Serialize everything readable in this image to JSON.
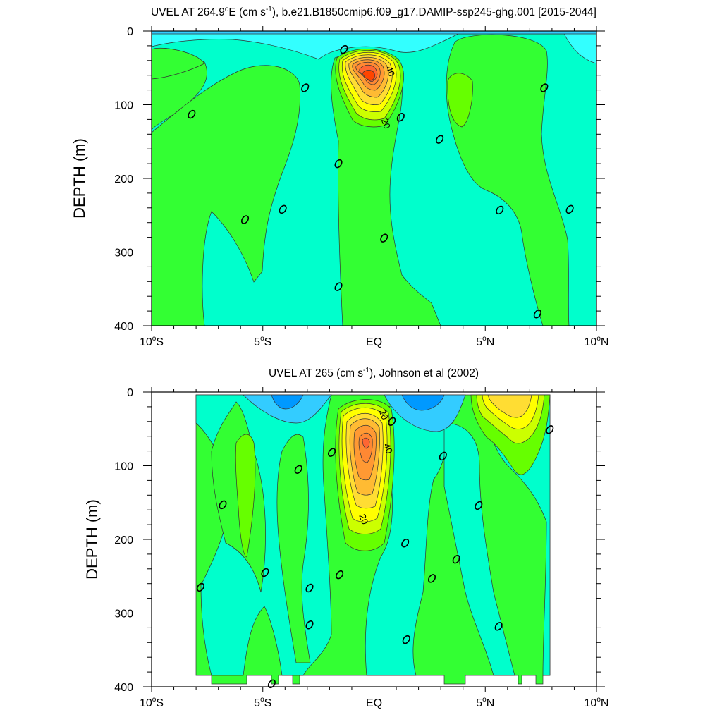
{
  "chart_data": [
    {
      "type": "heatmap",
      "title_parts": [
        "UVEL AT 264.9",
        "o",
        "E (cm s",
        "-1",
        "), b.e21.B1850cmip6.f09_g17.DAMIP-ssp245-ghg.001 [2015-2044]"
      ],
      "ylabel": "DEPTH (m)",
      "xlim": [
        -10,
        10
      ],
      "ylim": [
        0,
        400
      ],
      "x_ticks": [
        {
          "value": -10,
          "num": "10",
          "deg": "o",
          "hemi": "S"
        },
        {
          "value": -5,
          "num": "5",
          "deg": "o",
          "hemi": "S"
        },
        {
          "value": 0,
          "num": "EQ",
          "deg": "",
          "hemi": ""
        },
        {
          "value": 5,
          "num": "5",
          "deg": "o",
          "hemi": "N"
        },
        {
          "value": 10,
          "num": "10",
          "deg": "o",
          "hemi": "N"
        }
      ],
      "y_ticks": [
        {
          "value": 0,
          "label": "0"
        },
        {
          "value": 100,
          "label": "100"
        },
        {
          "value": 200,
          "label": "200"
        },
        {
          "value": 300,
          "label": "300"
        },
        {
          "value": 400,
          "label": "400"
        }
      ],
      "contour_labels": [
        {
          "text": "40",
          "x": 0.6,
          "y": 56
        },
        {
          "text": "20",
          "x": 0.4,
          "y": 127
        }
      ],
      "zero_labels": [
        {
          "x": -1.35,
          "y": 25
        },
        {
          "x": -3.1,
          "y": 77
        },
        {
          "x": -8.2,
          "y": 113
        },
        {
          "x": 1.2,
          "y": 117
        },
        {
          "x": 2.95,
          "y": 147
        },
        {
          "x": 7.65,
          "y": 77
        },
        {
          "x": -1.6,
          "y": 180
        },
        {
          "x": -4.1,
          "y": 242
        },
        {
          "x": -5.8,
          "y": 256
        },
        {
          "x": 5.65,
          "y": 243
        },
        {
          "x": 8.8,
          "y": 242
        },
        {
          "x": 0.45,
          "y": 281
        },
        {
          "x": -1.6,
          "y": 347
        },
        {
          "x": 7.35,
          "y": 384
        }
      ]
    },
    {
      "type": "heatmap",
      "title_parts": [
        "UVEL AT 265 (cm s",
        "-1",
        "), Johnson et al (2002)"
      ],
      "ylabel": "DEPTH (m)",
      "xlim": [
        -10,
        10
      ],
      "ylim": [
        0,
        400
      ],
      "x_ticks": [
        {
          "value": -10,
          "num": "10",
          "deg": "o",
          "hemi": "S"
        },
        {
          "value": -5,
          "num": "5",
          "deg": "o",
          "hemi": "S"
        },
        {
          "value": 0,
          "num": "EQ",
          "deg": "",
          "hemi": ""
        },
        {
          "value": 5,
          "num": "5",
          "deg": "o",
          "hemi": "N"
        },
        {
          "value": 10,
          "num": "10",
          "deg": "o",
          "hemi": "N"
        }
      ],
      "y_ticks": [
        {
          "value": 0,
          "label": "0"
        },
        {
          "value": 100,
          "label": "100"
        },
        {
          "value": 200,
          "label": "200"
        },
        {
          "value": 300,
          "label": "300"
        },
        {
          "value": 400,
          "label": "400"
        }
      ],
      "contour_labels": [
        {
          "text": "20",
          "x": 0.3,
          "y": 32
        },
        {
          "text": "40",
          "x": 0.5,
          "y": 78
        },
        {
          "text": "20",
          "x": -0.6,
          "y": 174
        }
      ],
      "zero_labels": [
        {
          "x": 0.8,
          "y": 40
        },
        {
          "x": 7.9,
          "y": 51
        },
        {
          "x": -1.9,
          "y": 82
        },
        {
          "x": 3.1,
          "y": 87
        },
        {
          "x": -3.4,
          "y": 105
        },
        {
          "x": -6.8,
          "y": 153
        },
        {
          "x": 4.7,
          "y": 154
        },
        {
          "x": 1.4,
          "y": 205
        },
        {
          "x": 3.7,
          "y": 227
        },
        {
          "x": -1.55,
          "y": 248
        },
        {
          "x": -4.9,
          "y": 245
        },
        {
          "x": 2.6,
          "y": 253
        },
        {
          "x": -2.9,
          "y": 266
        },
        {
          "x": -7.8,
          "y": 265
        },
        {
          "x": -2.9,
          "y": 316
        },
        {
          "x": 5.6,
          "y": 318
        },
        {
          "x": 1.45,
          "y": 336
        },
        {
          "x": -4.6,
          "y": 396
        }
      ]
    }
  ]
}
